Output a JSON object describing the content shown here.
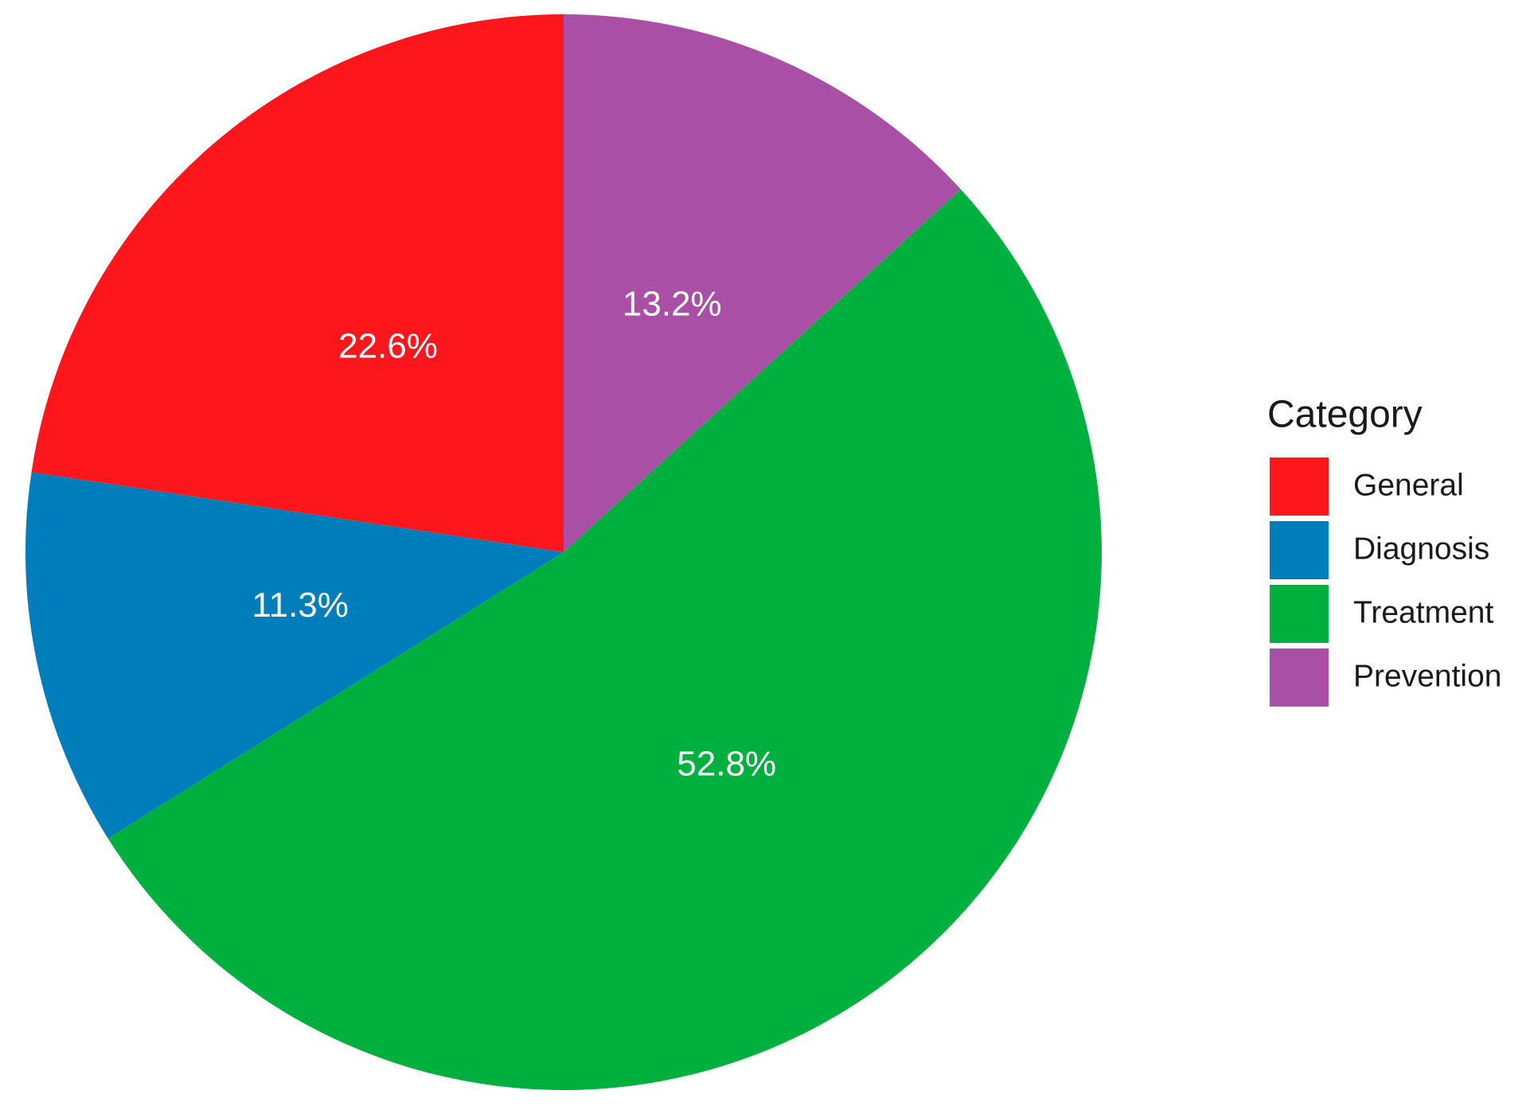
{
  "chart_data": {
    "type": "pie",
    "categories": [
      "General",
      "Diagnosis",
      "Treatment",
      "Prevention"
    ],
    "values": [
      22.6,
      11.3,
      52.8,
      13.2
    ],
    "value_labels": [
      "22.6%",
      "11.3%",
      "52.8%",
      "13.2%"
    ],
    "colors": [
      "#fe161d",
      "#007dbb",
      "#00b03e",
      "#a94fa6"
    ],
    "legend_title": "Category",
    "legend_position": "right"
  }
}
